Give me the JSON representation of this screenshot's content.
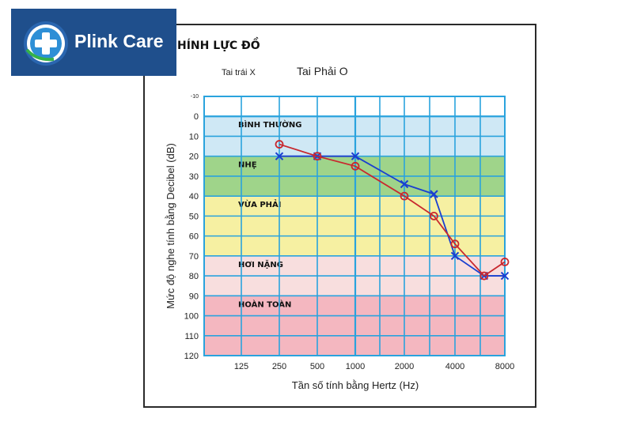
{
  "logo": {
    "text": "Plink Care"
  },
  "chart_data": {
    "type": "line",
    "title": "HÍNH LỰC ĐỒ",
    "legend": {
      "left_ear_label": "Tai trái X",
      "right_ear_label": "Tai Phải O",
      "placement": "top"
    },
    "xlabel": "Tần số tính bằng Hertz (Hz)",
    "ylabel": "Mức độ nghe tính bằng Decibel (dB)",
    "x_tick_labels": [
      "125",
      "250",
      "500",
      "1000",
      "2000",
      "4000",
      "8000"
    ],
    "y_tick_labels": [
      "-10",
      "0",
      "10",
      "20",
      "30",
      "40",
      "50",
      "60",
      "70",
      "80",
      "90",
      "100",
      "110",
      "120"
    ],
    "ylim": [
      -10,
      120
    ],
    "y_inverted": true,
    "grid": true,
    "bands": [
      {
        "label": "BÌNH THƯỜNG",
        "from": 0,
        "to": 20,
        "color": "#cfe8f5"
      },
      {
        "label": "NHẸ",
        "from": 20,
        "to": 40,
        "color": "#9fd48a"
      },
      {
        "label": "VỪA PHẢI",
        "from": 40,
        "to": 70,
        "color": "#f6f0a2"
      },
      {
        "label": "HƠI NẶNG",
        "from": 70,
        "to": 90,
        "color": "#f8dede"
      },
      {
        "label": "HOÀN TOÀN",
        "from": 90,
        "to": 120,
        "color": "#f4b7c0"
      }
    ],
    "series": [
      {
        "name": "Tai trái X",
        "marker": "x",
        "color": "#1a3fd0",
        "points": [
          {
            "x": 250,
            "y": 20
          },
          {
            "x": 500,
            "y": 20
          },
          {
            "x": 1000,
            "y": 20
          },
          {
            "x": 2000,
            "y": 34
          },
          {
            "x": 3000,
            "y": 39
          },
          {
            "x": 4000,
            "y": 70
          },
          {
            "x": 6000,
            "y": 80
          },
          {
            "x": 8000,
            "y": 80
          }
        ]
      },
      {
        "name": "Tai Phải O",
        "marker": "o",
        "color": "#c8282e",
        "points": [
          {
            "x": 250,
            "y": 14
          },
          {
            "x": 500,
            "y": 20
          },
          {
            "x": 1000,
            "y": 25
          },
          {
            "x": 2000,
            "y": 40
          },
          {
            "x": 3000,
            "y": 50
          },
          {
            "x": 4000,
            "y": 64
          },
          {
            "x": 6000,
            "y": 80
          },
          {
            "x": 8000,
            "y": 73
          }
        ]
      }
    ]
  }
}
